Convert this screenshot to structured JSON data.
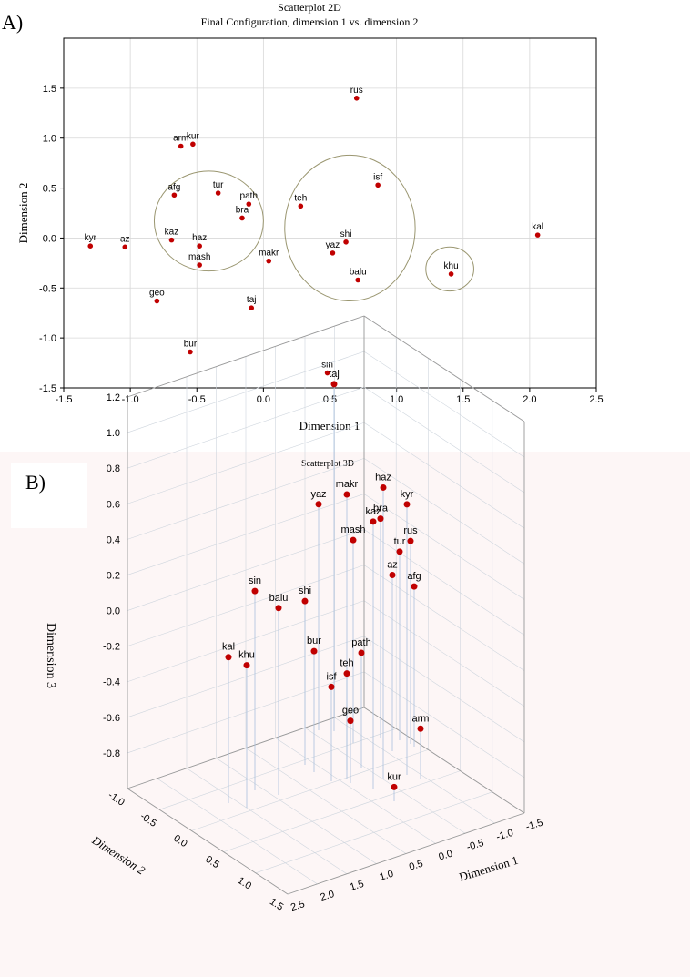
{
  "panel_a": {
    "letter": "A)",
    "chart_title": "Scatterplot 2D",
    "chart_subtitle": "Final Configuration, dimension 1  vs. dimension 2"
  },
  "panel_b": {
    "letter": "B)",
    "chart_title": "Scatterplot 3D"
  },
  "colors": {
    "point": "#c00000",
    "grid": "#d8d8d8",
    "ellipse": "#9a9670",
    "stem": "#a9c0de",
    "panel_b_bg": "#fdf6f6"
  },
  "chart_data": [
    {
      "type": "scatter",
      "title": "Scatterplot 2D",
      "subtitle": "Final Configuration, dimension 1  vs. dimension 2",
      "xlabel": "Dimension 1",
      "ylabel": "Dimension 2",
      "xlim": [
        -1.5,
        2.5
      ],
      "ylim": [
        -1.5,
        2.0
      ],
      "xticks": [
        "-1.5",
        "-1.0",
        "-0.5",
        "0.0",
        "0.5",
        "1.0",
        "1.5",
        "2.0",
        "2.5"
      ],
      "yticks": [
        "-1.5",
        "-1.0",
        "-0.5",
        "0.0",
        "0.5",
        "1.0",
        "1.5"
      ],
      "grid": true,
      "points": [
        {
          "label": "rus",
          "x": 0.7,
          "y": 1.4
        },
        {
          "label": "arm",
          "x": -0.62,
          "y": 0.92
        },
        {
          "label": "kur",
          "x": -0.53,
          "y": 0.94
        },
        {
          "label": "afg",
          "x": -0.67,
          "y": 0.43
        },
        {
          "label": "tur",
          "x": -0.34,
          "y": 0.45
        },
        {
          "label": "path",
          "x": -0.11,
          "y": 0.34
        },
        {
          "label": "bra",
          "x": -0.16,
          "y": 0.2
        },
        {
          "label": "teh",
          "x": 0.28,
          "y": 0.32
        },
        {
          "label": "isf",
          "x": 0.86,
          "y": 0.53
        },
        {
          "label": "kal",
          "x": 2.06,
          "y": 0.03
        },
        {
          "label": "kyr",
          "x": -1.3,
          "y": -0.08
        },
        {
          "label": "az",
          "x": -1.04,
          "y": -0.09
        },
        {
          "label": "kaz",
          "x": -0.69,
          "y": -0.02
        },
        {
          "label": "haz",
          "x": -0.48,
          "y": -0.08
        },
        {
          "label": "shi",
          "x": 0.62,
          "y": -0.04
        },
        {
          "label": "yaz",
          "x": 0.52,
          "y": -0.15
        },
        {
          "label": "mash",
          "x": -0.48,
          "y": -0.27
        },
        {
          "label": "makr",
          "x": 0.04,
          "y": -0.23
        },
        {
          "label": "khu",
          "x": 1.41,
          "y": -0.36
        },
        {
          "label": "balu",
          "x": 0.71,
          "y": -0.42
        },
        {
          "label": "geo",
          "x": -0.8,
          "y": -0.63
        },
        {
          "label": "taj",
          "x": -0.09,
          "y": -0.7
        },
        {
          "label": "bur",
          "x": -0.55,
          "y": -1.14
        },
        {
          "label": "sin",
          "x": 0.48,
          "y": -1.35
        }
      ],
      "clusters": [
        {
          "cx": -0.41,
          "cy": 0.17,
          "rx": 0.41,
          "ry": 0.5
        },
        {
          "cx": 0.65,
          "cy": 0.1,
          "rx": 0.49,
          "ry": 0.73
        },
        {
          "cx": 1.4,
          "cy": -0.31,
          "rx": 0.18,
          "ry": 0.22
        }
      ]
    },
    {
      "type": "scatter3d",
      "title": "Scatterplot 3D",
      "xlabel": "Dimension 1",
      "ylabel": "Dimension 2",
      "zlabel": "Dimension 3",
      "xlim": [
        -1.5,
        2.5
      ],
      "ylim": [
        -1.0,
        1.5
      ],
      "zlim": [
        -1.0,
        1.2
      ],
      "xticks": [
        "-1.5",
        "-1.0",
        "-0.5",
        "0.0",
        "0.5",
        "1.0",
        "1.5",
        "2.0",
        "2.5"
      ],
      "yticks": [
        "-1.0",
        "-0.5",
        "0.0",
        "0.5",
        "1.0",
        "1.5"
      ],
      "zticks": [
        "-0.8",
        "-0.6",
        "-0.4",
        "-0.2",
        "0.0",
        "0.2",
        "0.4",
        "0.6",
        "0.8",
        "1.0",
        "1.2"
      ],
      "grid": true,
      "points": [
        {
          "label": "taj",
          "z": 0.95
        },
        {
          "label": "haz",
          "z": 0.64
        },
        {
          "label": "makr",
          "z": 0.55
        },
        {
          "label": "kaz",
          "z": 0.5
        },
        {
          "label": "kyr",
          "z": 0.52
        },
        {
          "label": "yaz",
          "z": 0.27
        },
        {
          "label": "bra",
          "z": 0.23
        },
        {
          "label": "mash",
          "z": 0.14
        },
        {
          "label": "rus",
          "z": 0.14
        },
        {
          "label": "sin",
          "z": 0.12
        },
        {
          "label": "balu",
          "z": 0.05
        },
        {
          "label": "tur",
          "z": 0.06
        },
        {
          "label": "az",
          "z": -0.01
        },
        {
          "label": "shi",
          "z": -0.08
        },
        {
          "label": "afg",
          "z": -0.1
        },
        {
          "label": "kal",
          "z": -0.18
        },
        {
          "label": "khu",
          "z": -0.2
        },
        {
          "label": "bur",
          "z": -0.32
        },
        {
          "label": "path",
          "z": -0.35
        },
        {
          "label": "teh",
          "z": -0.41
        },
        {
          "label": "isf",
          "z": -0.47
        },
        {
          "label": "geo",
          "z": -0.65
        },
        {
          "label": "arm",
          "z": -0.72
        },
        {
          "label": "kur",
          "z": -0.92
        }
      ]
    }
  ]
}
